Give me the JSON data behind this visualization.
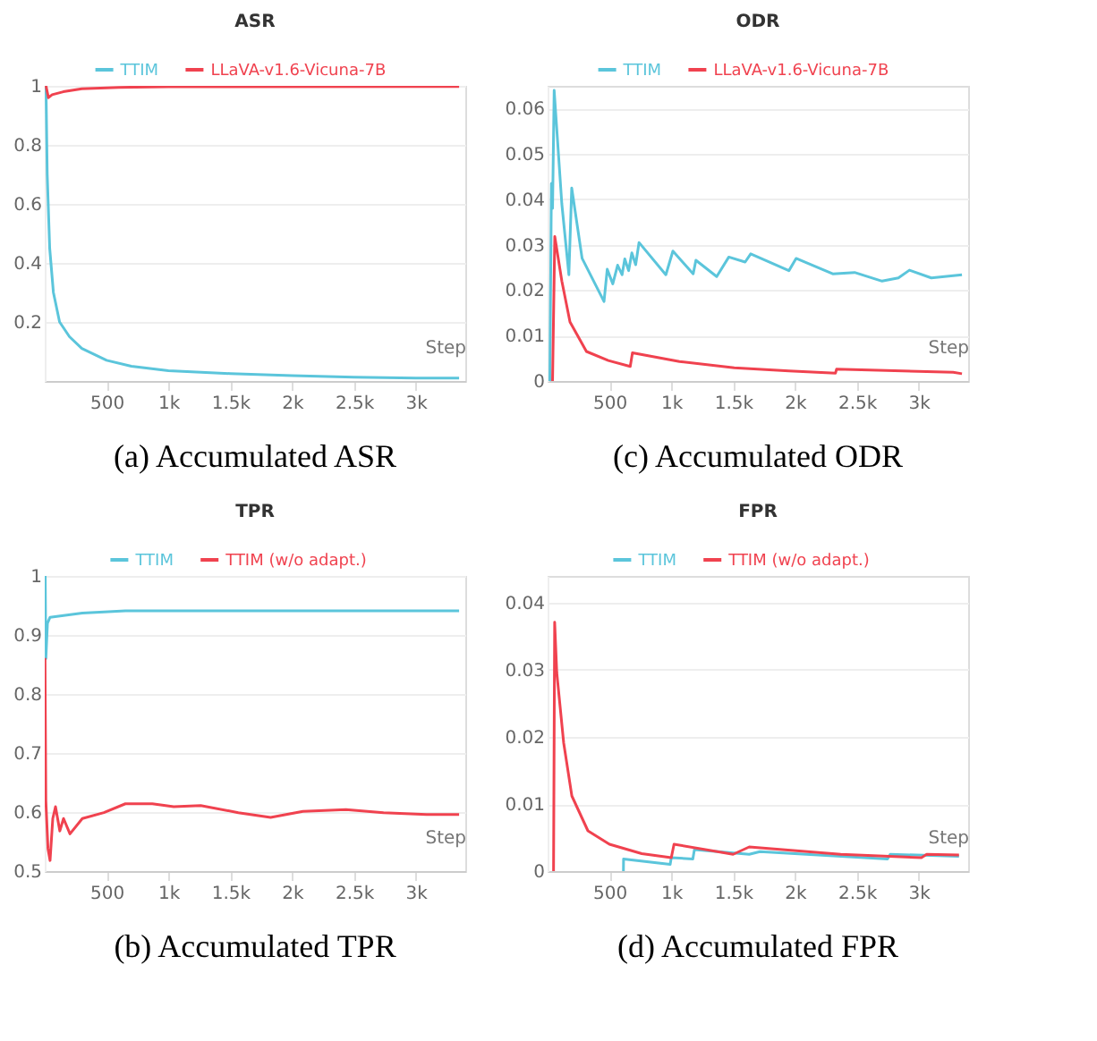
{
  "chart_data": [
    {
      "type": "line",
      "title": "ASR",
      "xlabel": "Step",
      "legend": "top",
      "grid": "y",
      "xlim": [
        0,
        3400
      ],
      "ylim": [
        0,
        1
      ],
      "xticks": [
        {
          "value": 500,
          "label": "500"
        },
        {
          "value": 1000,
          "label": "1k"
        },
        {
          "value": 1500,
          "label": "1.5k"
        },
        {
          "value": 2000,
          "label": "2k"
        },
        {
          "value": 2500,
          "label": "2.5k"
        },
        {
          "value": 3000,
          "label": "3k"
        }
      ],
      "yticks": [
        0.2,
        0.4,
        0.6,
        0.8,
        1
      ],
      "annotations": [
        "(a)  Accumulated ASR"
      ],
      "series": [
        {
          "name": "TTIM",
          "color": "#5bc5db",
          "x": [
            10,
            20,
            40,
            70,
            120,
            200,
            300,
            500,
            700,
            1000,
            1500,
            2000,
            2500,
            3000,
            3350
          ],
          "values": [
            1.0,
            0.7,
            0.45,
            0.3,
            0.2,
            0.15,
            0.11,
            0.07,
            0.05,
            0.035,
            0.025,
            0.018,
            0.013,
            0.01,
            0.01
          ]
        },
        {
          "name": "LLaVA-v1.6-Vicuna-7B",
          "color": "#f0424f",
          "x": [
            10,
            30,
            60,
            150,
            300,
            600,
            1000,
            3350
          ],
          "values": [
            1.0,
            0.96,
            0.97,
            0.98,
            0.99,
            0.995,
            0.997,
            0.998
          ]
        }
      ]
    },
    {
      "type": "line",
      "title": "ODR",
      "xlabel": "Step",
      "legend": "top",
      "grid": "y",
      "xlim": [
        0,
        3400
      ],
      "ylim": [
        0,
        0.065
      ],
      "xticks": [
        {
          "value": 500,
          "label": "500"
        },
        {
          "value": 1000,
          "label": "1k"
        },
        {
          "value": 1500,
          "label": "1.5k"
        },
        {
          "value": 2000,
          "label": "2k"
        },
        {
          "value": 2500,
          "label": "2.5k"
        },
        {
          "value": 3000,
          "label": "3k"
        }
      ],
      "yticks": [
        0,
        0.01,
        0.02,
        0.03,
        0.04,
        0.05,
        0.06
      ],
      "annotations": [
        "(c)  Accumulated ODR"
      ],
      "series": [
        {
          "name": "TTIM",
          "color": "#5bc5db",
          "x": [
            18,
            31,
            40,
            53,
            115,
            172,
            195,
            279,
            456,
            482,
            527,
            566,
            602,
            624,
            655,
            681,
            712,
            739,
            956,
            1013,
            1177,
            1199,
            1367,
            1465,
            1597,
            1642,
            1951,
            2009,
            2305,
            2482,
            2704,
            2836,
            2925,
            3102,
            3350
          ],
          "values": [
            0,
            0.0435,
            0.038,
            0.064,
            0.039,
            0.0234,
            0.0425,
            0.027,
            0.0175,
            0.0246,
            0.0214,
            0.0255,
            0.0234,
            0.0269,
            0.0243,
            0.0282,
            0.0256,
            0.0305,
            0.0234,
            0.0286,
            0.0236,
            0.0266,
            0.023,
            0.0273,
            0.0262,
            0.028,
            0.0243,
            0.027,
            0.0236,
            0.0239,
            0.022,
            0.0227,
            0.0244,
            0.0227,
            0.0234
          ]
        },
        {
          "name": "LLaVA-v1.6-Vicuna-7B",
          "color": "#f0424f",
          "x": [
            40,
            58,
            115,
            181,
            314,
            491,
            668,
            686,
            1066,
            1509,
            1951,
            2327,
            2336,
            3279,
            3350
          ],
          "values": [
            0,
            0.0318,
            0.022,
            0.013,
            0.0065,
            0.0045,
            0.0032,
            0.0062,
            0.0043,
            0.0029,
            0.0022,
            0.0017,
            0.0026,
            0.0019,
            0.0016
          ]
        }
      ]
    },
    {
      "type": "line",
      "title": "TPR",
      "xlabel": "Step",
      "legend": "top",
      "grid": "y",
      "xlim": [
        0,
        3400
      ],
      "ylim": [
        0.5,
        1
      ],
      "xticks": [
        {
          "value": 500,
          "label": "500"
        },
        {
          "value": 1000,
          "label": "1k"
        },
        {
          "value": 1500,
          "label": "1.5k"
        },
        {
          "value": 2000,
          "label": "2k"
        },
        {
          "value": 2500,
          "label": "2.5k"
        },
        {
          "value": 3000,
          "label": "3k"
        }
      ],
      "yticks": [
        0.5,
        0.6,
        0.7,
        0.8,
        0.9,
        1
      ],
      "annotations": [
        "(b)  Accumulated TPR"
      ],
      "series": [
        {
          "name": "TTIM",
          "color": "#5bc5db",
          "x": [
            4,
            9,
            22,
            43,
            152,
            304,
            652,
            3350
          ],
          "values": [
            1.0,
            0.86,
            0.92,
            0.93,
            0.933,
            0.937,
            0.941,
            0.941
          ]
        },
        {
          "name": "TTIM (w/o adapt.)",
          "color": "#f0424f",
          "x": [
            2,
            9,
            26,
            43,
            65,
            87,
            122,
            152,
            204,
            304,
            478,
            652,
            870,
            1043,
            1261,
            1565,
            1826,
            2087,
            2435,
            2739,
            3087,
            3350
          ],
          "values": [
            0.861,
            0.619,
            0.538,
            0.518,
            0.589,
            0.609,
            0.568,
            0.589,
            0.563,
            0.589,
            0.599,
            0.614,
            0.614,
            0.609,
            0.611,
            0.599,
            0.591,
            0.601,
            0.604,
            0.599,
            0.596,
            0.596
          ]
        }
      ]
    },
    {
      "type": "line",
      "title": "FPR",
      "xlabel": "Step",
      "legend": "top",
      "grid": "y",
      "xlim": [
        0,
        3400
      ],
      "ylim": [
        0,
        0.044
      ],
      "xticks": [
        {
          "value": 500,
          "label": "500"
        },
        {
          "value": 1000,
          "label": "1k"
        },
        {
          "value": 1500,
          "label": "1.5k"
        },
        {
          "value": 2000,
          "label": "2k"
        },
        {
          "value": 2500,
          "label": "2.5k"
        },
        {
          "value": 3000,
          "label": "3k"
        }
      ],
      "yticks": [
        0,
        0.01,
        0.02,
        0.03,
        0.04
      ],
      "annotations": [
        "(d)  Accumulated FPR"
      ],
      "series": [
        {
          "name": "TTIM",
          "color": "#5bc5db",
          "x": [
            613,
            614,
            991,
            1000,
            1174,
            1187,
            1630,
            1717,
            2748,
            2770,
            3326
          ],
          "values": [
            0,
            0.0018,
            0.001,
            0.002,
            0.0018,
            0.0032,
            0.0025,
            0.0029,
            0.0018,
            0.0025,
            0.0022
          ]
        },
        {
          "name": "TTIM (w/o adapt.)",
          "color": "#f0424f",
          "x": [
            48,
            57,
            74,
            130,
            196,
            326,
            500,
            761,
            1000,
            1022,
            1500,
            1630,
            2370,
            3022,
            3065,
            3326
          ],
          "values": [
            0,
            0.0371,
            0.0296,
            0.0191,
            0.0112,
            0.006,
            0.004,
            0.0026,
            0.002,
            0.004,
            0.0025,
            0.0036,
            0.0025,
            0.002,
            0.0025,
            0.0024
          ]
        }
      ]
    }
  ]
}
